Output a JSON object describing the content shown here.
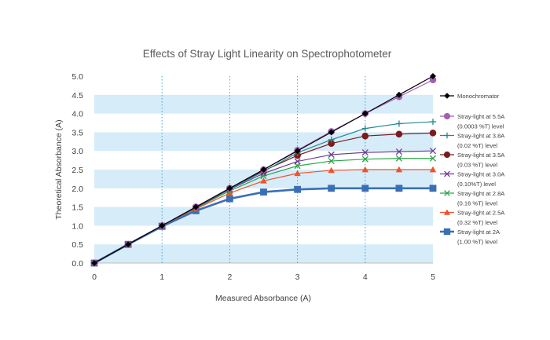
{
  "chart_data": {
    "type": "line",
    "title": "Effects of Stray Light Linearity on Spectrophotometer",
    "xlabel": "Measured Absorbance (A)",
    "ylabel": "Theoretical Absorbance (A)",
    "xlim": [
      0,
      5
    ],
    "ylim": [
      0,
      5
    ],
    "x_ticks": [
      "0",
      "1",
      "2",
      "3",
      "4",
      "5"
    ],
    "y_ticks": [
      "0.0",
      "0.5",
      "1.0",
      "1.5",
      "2.0",
      "2.5",
      "3.0",
      "3.5",
      "4.0",
      "4.5",
      "5.0"
    ],
    "x": [
      0,
      0.5,
      1,
      1.5,
      2,
      2.5,
      3,
      3.5,
      4,
      4.5,
      5
    ],
    "grid": "vertical dotted lines at x = 1, 2, 3, 4; alternating horizontal bands",
    "band_color": "#d6ecf9",
    "legend_position": "right",
    "series": [
      {
        "name": "Monochromator",
        "legend": [
          "Monochromator"
        ],
        "color": "#000000",
        "marker": "diamond",
        "values": [
          0,
          0.5,
          1.0,
          1.5,
          2.0,
          2.5,
          3.0,
          3.5,
          4.0,
          4.5,
          5.0
        ]
      },
      {
        "name": "Stray-light at 5.5A (0.0003 %T) level",
        "legend": [
          "Stray-light at 5.5A",
          "(0.0003 %T) level"
        ],
        "color": "#a45fb3",
        "marker": "circle",
        "values": [
          0,
          0.5,
          1.0,
          1.5,
          2.0,
          2.5,
          3.02,
          3.52,
          4.0,
          4.45,
          4.9
        ]
      },
      {
        "name": "Stray-light at 3.8A (0.02 %T) level",
        "legend": [
          "Stray-light at 3.8A",
          "(0.02 %T) level"
        ],
        "color": "#23898f",
        "marker": "plus",
        "values": [
          0,
          0.5,
          1.0,
          1.5,
          1.98,
          2.45,
          2.95,
          3.3,
          3.6,
          3.73,
          3.78
        ]
      },
      {
        "name": "Stray-light at 3.5A (0.03 %T) level",
        "legend": [
          "Stray-light at 3.5A",
          "(0.03 %T) level"
        ],
        "color": "#7b1c1c",
        "marker": "circle",
        "values": [
          0,
          0.5,
          1.0,
          1.5,
          2.0,
          2.47,
          2.88,
          3.2,
          3.4,
          3.45,
          3.48
        ]
      },
      {
        "name": "Stray-light at 3.0A (0.10%T) level",
        "legend": [
          "Stray-light at 3.0A",
          "(0.10%T) level"
        ],
        "color": "#6d3a92",
        "marker": "x",
        "values": [
          0,
          0.5,
          1.0,
          1.48,
          1.97,
          2.4,
          2.72,
          2.9,
          2.96,
          2.98,
          3.0
        ]
      },
      {
        "name": "Stray-light at 2.8A (0.16 %T) level",
        "legend": [
          "Stray-light at 2.8A",
          "(0.16 %T) level"
        ],
        "color": "#2aa44a",
        "marker": "x",
        "values": [
          0,
          0.5,
          1.0,
          1.47,
          1.93,
          2.33,
          2.6,
          2.73,
          2.78,
          2.8,
          2.8
        ]
      },
      {
        "name": "Stray-light at 2.5A (0.32 %T) level",
        "legend": [
          "Stray-light at 2.5A",
          "(0.32 %T) level"
        ],
        "color": "#f0522a",
        "marker": "triangle",
        "values": [
          0,
          0.5,
          1.0,
          1.45,
          1.87,
          2.2,
          2.4,
          2.48,
          2.5,
          2.5,
          2.5
        ]
      },
      {
        "name": "Stray-light at 2A (1.00 %T) level",
        "legend": [
          "Stray-light at 2A",
          "(1.00 %T) level"
        ],
        "color": "#3a6fb5",
        "marker": "square",
        "values": [
          0,
          0.5,
          0.98,
          1.4,
          1.72,
          1.9,
          1.97,
          2.0,
          2.0,
          2.0,
          2.0
        ]
      }
    ]
  }
}
